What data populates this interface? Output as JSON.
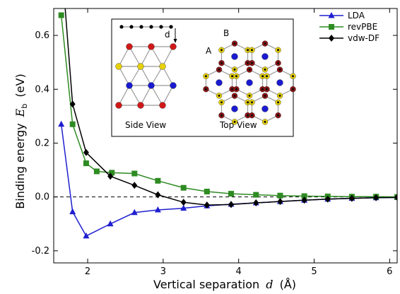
{
  "chart_data": {
    "type": "line",
    "xlabel": "Vertical separation",
    "xlabel_symbol": "d",
    "xlabel_unit": "(Å)",
    "ylabel": "Binding energy",
    "ylabel_symbol": "E",
    "ylabel_subscript": "b",
    "ylabel_unit": "(eV)",
    "xlim": [
      1.55,
      6.1
    ],
    "ylim": [
      -0.245,
      0.7
    ],
    "xticks": [
      "2",
      "3",
      "4",
      "5",
      "6"
    ],
    "yticks": [
      "-0.2",
      "0.0",
      "0.2",
      "0.4",
      "0.6"
    ],
    "xtick_values": [
      2,
      3,
      4,
      5,
      6
    ],
    "ytick_values": [
      -0.2,
      0.0,
      0.2,
      0.4,
      0.6
    ],
    "reference_line_y": 0.0,
    "legend_position": "top-right",
    "series": [
      {
        "name": "LDA",
        "color": "#1f1fd0",
        "marker": "triangle",
        "x": [
          1.65,
          1.8,
          1.98,
          2.3,
          2.62,
          2.93,
          3.27,
          3.58,
          3.9,
          4.23,
          4.55,
          4.87,
          5.18,
          5.5,
          5.82,
          6.1
        ],
        "y": [
          0.27,
          -0.055,
          -0.145,
          -0.1,
          -0.058,
          -0.048,
          -0.042,
          -0.033,
          -0.027,
          -0.022,
          -0.017,
          -0.012,
          -0.008,
          -0.005,
          -0.003,
          -0.002
        ]
      },
      {
        "name": "revPBE",
        "color": "#2e8b22",
        "marker": "square",
        "x": [
          1.65,
          1.8,
          1.98,
          2.12,
          2.32,
          2.62,
          2.93,
          3.27,
          3.58,
          3.9,
          4.23,
          4.55,
          4.87,
          5.18,
          5.5,
          5.82,
          6.1
        ],
        "y": [
          0.675,
          0.27,
          0.125,
          0.095,
          0.09,
          0.087,
          0.06,
          0.034,
          0.02,
          0.012,
          0.008,
          0.005,
          0.003,
          0.002,
          0.001,
          0.001,
          0.0
        ]
      },
      {
        "name": "vdw-DF",
        "color": "#000000",
        "marker": "diamond",
        "x": [
          1.68,
          1.8,
          1.98,
          2.3,
          2.62,
          2.93,
          3.27,
          3.58,
          3.9,
          4.23,
          4.55,
          4.87,
          5.18,
          5.5,
          5.82,
          6.1
        ],
        "y": [
          0.78,
          0.345,
          0.165,
          0.077,
          0.043,
          0.008,
          -0.02,
          -0.03,
          -0.028,
          -0.022,
          -0.017,
          -0.012,
          -0.008,
          -0.005,
          -0.003,
          -0.002
        ]
      }
    ],
    "inset": {
      "side_view_label": "Side View",
      "top_view_label": "Top View",
      "distance_label": "d",
      "site_a_label": "A",
      "site_b_label": "B"
    }
  }
}
